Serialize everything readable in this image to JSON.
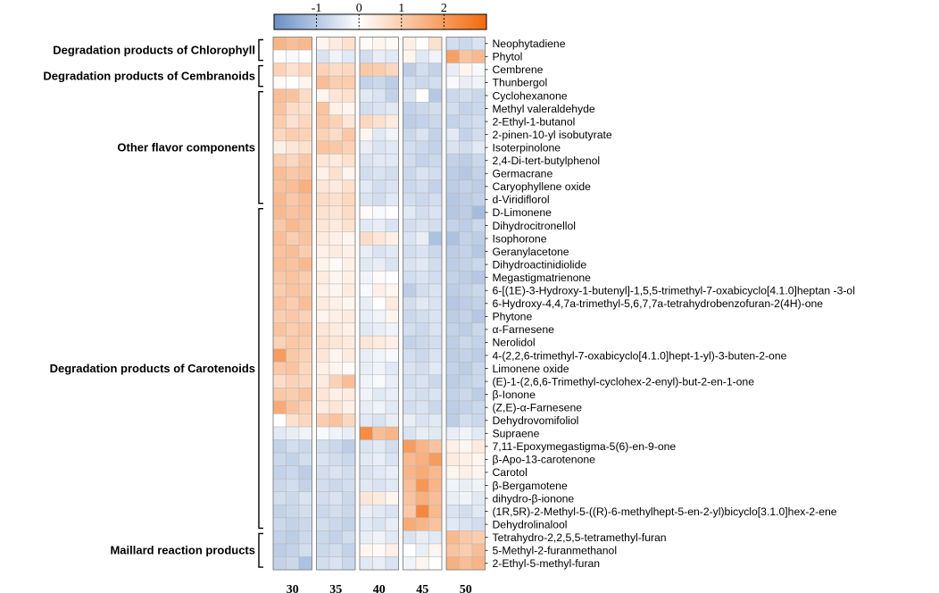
{
  "chart_data": {
    "type": "heatmap",
    "colorbar": {
      "min": -2,
      "max": 3,
      "low_color": "#6a8fc6",
      "mid_color": "#ffffff",
      "high_color": "#f26a0e",
      "ticks": [
        -1,
        0,
        1,
        2
      ],
      "tick_labels": [
        "-1",
        "0",
        "1",
        "2"
      ]
    },
    "columns": [
      "30",
      "35",
      "40",
      "45",
      "50"
    ],
    "replicates_per_column": 3,
    "groups": [
      {
        "label": "Degradation products of Chlorophyll",
        "rows": [
          0,
          1
        ]
      },
      {
        "label": "Degradation products of Cembranoids",
        "rows": [
          2,
          3
        ]
      },
      {
        "label": "Other flavor components",
        "rows": [
          4,
          12
        ]
      },
      {
        "label": "Degradation products of Carotenoids",
        "rows": [
          13,
          37
        ]
      },
      {
        "label": "Maillard reaction products",
        "rows": [
          38,
          40
        ]
      }
    ],
    "rows": [
      "Neophytadiene",
      "Phytol",
      "Cembrene",
      "Thunbergol",
      "Cyclohexanone",
      "Methyl valeraldehyde",
      "2-Ethyl-1-butanol",
      "2-pinen-10-yl isobutyrate",
      "Isoterpinolone",
      "2,4-Di-tert-butylphenol",
      "Germacrane",
      "Caryophyllene oxide",
      "d-Viridiflorol",
      "D-Limonene",
      "Dihydrocitronellol",
      "Isophorone",
      "Geranylacetone",
      "Dihydroactinidiolide",
      "Megastigmatrienone",
      "6-[(1E)-3-Hydroxy-1-butenyl]-1,5,5-trimethyl-7-oxabicyclo[4.1.0]heptan -3-ol",
      "6-Hydroxy-4,4,7a-trimethyl-5,6,7,7a-tetrahydrobenzofuran-2(4H)-one",
      "Phytone",
      "α-Farnesene",
      "Nerolidol",
      "4-(2,2,6-trimethyl-7-oxabicyclo[4.1.0]hept-1-yl)-3-buten-2-one",
      "Limonene oxide",
      "(E)-1-(2,6,6-Trimethyl-cyclohex-2-enyl)-but-2-en-1-one",
      "β-Ionone",
      "(Z,E)-α-Farnesene",
      "Dehydrovomifoliol",
      "Supraene",
      "7,11-Epoxymegastigma-5(6)-en-9-one",
      "β-Apo-13-carotenone",
      "Carotol",
      "β-Bergamotene",
      "dihydro-β-ionone",
      "(1R,5R)-2-Methyl-5-((R)-6-methylhept-5-en-2-yl)bicyclo[3.1.0]hex-2-ene",
      "Dehydrolinalool",
      "Tetrahydro-2,2,5,5-tetramethyl-furan",
      "5-Methyl-2-furanmethanol",
      "2-Ethyl-5-methyl-furan"
    ],
    "values": [
      [
        1.5,
        1.3,
        1.4,
        0.2,
        0.4,
        0.6,
        0.1,
        0.2,
        0.1,
        0.3,
        0.0,
        0.6,
        -0.6,
        -0.7,
        -0.5
      ],
      [
        0.0,
        -0.1,
        0.0,
        -0.5,
        -0.2,
        -0.4,
        -0.6,
        -0.3,
        -0.4,
        0.2,
        -0.4,
        -0.2,
        1.9,
        1.2,
        1.4
      ],
      [
        0.9,
        0.6,
        0.8,
        0.9,
        0.7,
        0.8,
        1.1,
        1.0,
        0.8,
        -0.9,
        -0.6,
        -0.8,
        -0.3,
        0.2,
        -0.1
      ],
      [
        0.1,
        0.0,
        0.2,
        1.3,
        1.0,
        1.0,
        -0.8,
        -0.7,
        -0.9,
        -0.6,
        -0.7,
        -0.6,
        -0.1,
        -0.3,
        -0.2
      ],
      [
        1.3,
        1.2,
        0.7,
        0.2,
        0.5,
        0.6,
        -0.4,
        -0.5,
        -0.8,
        -0.5,
        0.0,
        -1.0,
        -0.7,
        -0.6,
        -0.7
      ],
      [
        1.2,
        0.7,
        0.6,
        1.2,
        0.3,
        0.2,
        -0.6,
        -0.5,
        -0.4,
        -0.8,
        -0.7,
        -0.6,
        -0.6,
        -0.8,
        -0.7
      ],
      [
        1.0,
        0.6,
        0.8,
        1.1,
        0.9,
        0.5,
        0.8,
        0.6,
        0.4,
        -0.9,
        -0.8,
        -0.7,
        -0.8,
        -0.7,
        -0.6
      ],
      [
        0.8,
        1.0,
        0.9,
        0.9,
        0.7,
        1.1,
        0.2,
        -0.4,
        -0.2,
        -0.7,
        -0.5,
        -0.8,
        -0.4,
        -0.8,
        -0.6
      ],
      [
        0.3,
        0.5,
        0.6,
        1.2,
        1.1,
        0.9,
        -0.3,
        -0.5,
        -0.4,
        -0.6,
        -0.7,
        -0.8,
        -0.5,
        -0.6,
        -0.4
      ],
      [
        1.0,
        0.8,
        1.1,
        0.5,
        0.4,
        0.6,
        -0.5,
        -0.4,
        -0.4,
        -0.6,
        -0.8,
        -0.7,
        -0.8,
        -0.9,
        -0.7
      ],
      [
        1.3,
        1.1,
        1.2,
        0.3,
        0.6,
        0.2,
        -0.6,
        -0.5,
        -0.6,
        -0.7,
        -0.5,
        -0.6,
        -0.9,
        -1.0,
        -0.8
      ],
      [
        1.2,
        1.3,
        1.6,
        0.5,
        0.4,
        0.6,
        -0.4,
        -0.6,
        -0.5,
        -0.7,
        -0.6,
        -0.8,
        -0.9,
        -0.8,
        -0.9
      ],
      [
        1.4,
        1.1,
        1.3,
        0.7,
        0.6,
        0.8,
        -0.5,
        -0.6,
        -0.4,
        -0.6,
        -0.7,
        -0.6,
        -1.0,
        -0.9,
        -0.8
      ],
      [
        1.4,
        1.2,
        1.3,
        0.6,
        0.5,
        0.7,
        0.1,
        -0.1,
        0.0,
        -0.4,
        -0.6,
        -0.5,
        -1.0,
        -0.9,
        -1.2
      ],
      [
        1.1,
        1.4,
        1.2,
        0.5,
        0.4,
        0.6,
        -0.4,
        -0.3,
        -0.5,
        -0.6,
        -0.5,
        -0.6,
        -0.8,
        -0.9,
        -0.7
      ],
      [
        1.3,
        1.0,
        1.2,
        0.4,
        0.3,
        0.2,
        0.7,
        0.5,
        0.3,
        -0.5,
        -0.3,
        -1.1,
        -1.1,
        -0.8,
        -0.9
      ],
      [
        1.2,
        1.3,
        1.0,
        0.3,
        0.4,
        0.3,
        -0.3,
        -0.5,
        -0.4,
        -0.6,
        -0.5,
        -0.7,
        -0.9,
        -0.8,
        -1.0
      ],
      [
        1.3,
        1.2,
        1.4,
        0.2,
        0.1,
        0.3,
        -0.4,
        -0.3,
        -0.5,
        -0.5,
        -0.4,
        -0.6,
        -0.9,
        -0.8,
        -0.7
      ],
      [
        1.1,
        1.2,
        1.0,
        0.4,
        0.2,
        0.3,
        -0.2,
        0.1,
        0.0,
        -0.6,
        -0.5,
        -0.6,
        -0.8,
        -0.9,
        -1.0
      ],
      [
        1.0,
        1.2,
        1.1,
        0.3,
        0.2,
        0.4,
        -0.1,
        0.3,
        0.2,
        -0.9,
        -0.6,
        -0.5,
        -0.9,
        -0.8,
        -0.7
      ],
      [
        1.2,
        1.0,
        1.3,
        0.4,
        0.3,
        0.2,
        -0.3,
        0.0,
        0.4,
        -0.6,
        -0.4,
        -0.5,
        -1.0,
        -0.9,
        -0.8
      ],
      [
        1.0,
        1.1,
        0.9,
        0.2,
        0.3,
        0.4,
        -0.3,
        -0.2,
        0.2,
        -0.7,
        -0.6,
        -0.5,
        -0.9,
        -0.8,
        -1.0
      ],
      [
        1.2,
        1.0,
        1.1,
        0.5,
        0.4,
        0.3,
        -0.4,
        -0.3,
        -0.2,
        -0.6,
        -0.7,
        -0.5,
        -0.8,
        -0.9,
        -0.7
      ],
      [
        0.9,
        1.1,
        1.0,
        0.6,
        0.5,
        0.4,
        0.5,
        0.4,
        0.3,
        -0.8,
        -0.7,
        -0.6,
        -0.9,
        -0.7,
        -0.8
      ],
      [
        2.0,
        1.1,
        0.9,
        0.5,
        0.2,
        0.4,
        -0.3,
        -0.2,
        -0.1,
        -0.6,
        -0.7,
        -0.5,
        -0.9,
        -0.8,
        -0.9
      ],
      [
        1.1,
        1.2,
        0.8,
        0.3,
        0.2,
        0.1,
        -0.3,
        -0.2,
        -0.4,
        -0.5,
        -0.6,
        -0.4,
        -0.8,
        -0.9,
        -0.7
      ],
      [
        0.7,
        0.9,
        0.8,
        0.4,
        0.9,
        1.3,
        -0.2,
        -0.1,
        -0.3,
        -0.6,
        -0.5,
        -0.7,
        -0.9,
        -0.8,
        -0.7
      ],
      [
        1.1,
        1.0,
        1.2,
        0.5,
        0.3,
        0.4,
        -0.2,
        -0.4,
        -0.3,
        -0.5,
        -0.6,
        -0.5,
        -0.8,
        -0.7,
        -0.9
      ],
      [
        1.7,
        1.2,
        0.9,
        0.4,
        0.5,
        0.3,
        -0.3,
        -0.2,
        -0.4,
        -0.6,
        -0.5,
        -0.7,
        -0.9,
        -0.8,
        -0.7
      ],
      [
        0.0,
        0.6,
        0.8,
        1.0,
        1.2,
        0.8,
        -0.4,
        -0.5,
        -0.3,
        -0.3,
        -0.5,
        -0.4,
        -0.9,
        -0.6,
        -0.7
      ],
      [
        -0.4,
        -0.3,
        -0.2,
        -0.1,
        -0.2,
        -0.3,
        2.3,
        1.3,
        1.5,
        -0.5,
        -0.3,
        -0.4,
        -0.3,
        -0.2,
        -0.4
      ],
      [
        -0.8,
        -0.6,
        -0.7,
        -0.6,
        -0.7,
        -0.9,
        -0.5,
        -0.4,
        -0.6,
        2.0,
        1.5,
        1.2,
        0.3,
        0.2,
        0.4
      ],
      [
        -0.7,
        -0.8,
        -0.6,
        -0.5,
        -0.6,
        -0.7,
        -0.4,
        -0.3,
        -0.5,
        1.4,
        1.6,
        2.0,
        0.4,
        0.3,
        0.2
      ],
      [
        -0.8,
        -0.7,
        -0.9,
        -0.6,
        -0.5,
        -0.6,
        -0.5,
        -0.4,
        -0.3,
        1.5,
        1.7,
        1.4,
        0.2,
        0.3,
        0.2
      ],
      [
        -0.7,
        -0.6,
        -0.8,
        -0.6,
        -0.7,
        -0.6,
        -0.4,
        -0.5,
        -0.4,
        1.3,
        2.1,
        1.5,
        -0.2,
        -0.3,
        -0.2
      ],
      [
        -0.6,
        -0.7,
        -0.5,
        -0.6,
        -0.5,
        -0.7,
        0.5,
        0.4,
        0.2,
        1.2,
        1.6,
        1.3,
        -0.3,
        -0.2,
        -0.4
      ],
      [
        -0.8,
        -0.7,
        -0.6,
        -0.7,
        -0.6,
        -0.7,
        -0.3,
        -0.4,
        -0.5,
        1.1,
        2.4,
        1.4,
        -0.5,
        -0.6,
        -0.4
      ],
      [
        -0.7,
        -0.8,
        -0.7,
        -0.6,
        -0.7,
        -0.8,
        -0.4,
        -0.5,
        -0.3,
        1.7,
        1.5,
        1.2,
        -0.4,
        -0.5,
        -0.6
      ],
      [
        -0.8,
        -0.9,
        -0.7,
        -0.7,
        -0.8,
        -0.6,
        -0.3,
        -0.2,
        -0.4,
        -0.5,
        -0.3,
        -0.4,
        1.4,
        1.1,
        1.0
      ],
      [
        -0.9,
        -0.8,
        -0.6,
        -0.7,
        -0.6,
        -0.8,
        0.2,
        0.1,
        0.3,
        0.0,
        -0.3,
        0.2,
        1.2,
        1.0,
        1.3
      ],
      [
        -0.8,
        -0.7,
        -1.1,
        -0.6,
        -0.5,
        -0.7,
        -0.4,
        -0.3,
        -0.5,
        -0.2,
        0.2,
        0.0,
        1.6,
        1.3,
        1.5
      ]
    ]
  }
}
